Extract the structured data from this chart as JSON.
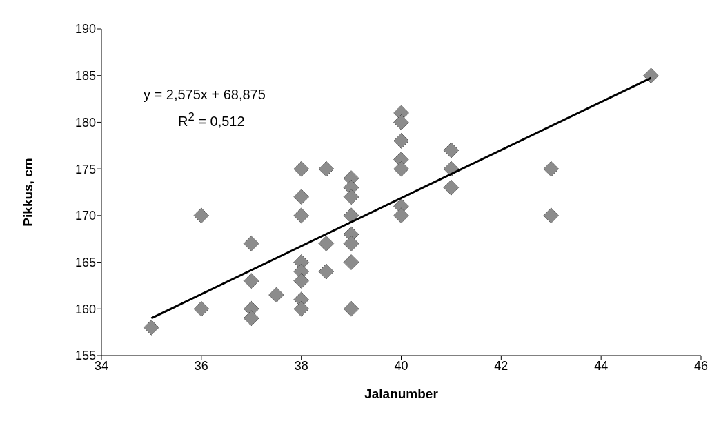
{
  "chart_data": {
    "type": "scatter",
    "xlabel": "Jalanumber",
    "ylabel": "Pikkus, cm",
    "marker": "diamond",
    "xlim": [
      34,
      46
    ],
    "xticks": [
      34,
      36,
      38,
      40,
      42,
      44,
      46
    ],
    "ylim": [
      155,
      190
    ],
    "yticks": [
      155,
      160,
      165,
      170,
      175,
      180,
      185,
      190
    ],
    "annotations": [
      "y = 2,575x + 68,875",
      "R$^{2}$ = 0,512"
    ],
    "series": [
      {
        "color": "#8c8c8c",
        "x": [
          35,
          36,
          36,
          37,
          37,
          37,
          37,
          37.5,
          38,
          38,
          38,
          38,
          38,
          38,
          38,
          38,
          38.5,
          38.5,
          38.5,
          39,
          39,
          39,
          39,
          39,
          39,
          39,
          39,
          40,
          40,
          40,
          40,
          40,
          40,
          40,
          41,
          41,
          41,
          43,
          43,
          45
        ],
        "values": [
          158,
          170,
          160,
          167,
          163,
          160,
          159,
          161.5,
          175,
          172,
          170,
          165,
          164,
          163,
          161,
          160,
          175,
          167,
          164,
          174,
          173,
          172,
          170,
          168,
          167,
          165,
          160,
          181,
          180,
          178,
          176,
          175,
          171,
          170,
          177,
          175,
          173,
          175,
          170,
          185
        ]
      },
      {
        "type": "line",
        "color": "#000000",
        "marker": "none",
        "line_style": "solid",
        "x": [
          35,
          45
        ],
        "values": [
          159,
          184.75
        ]
      }
    ]
  }
}
